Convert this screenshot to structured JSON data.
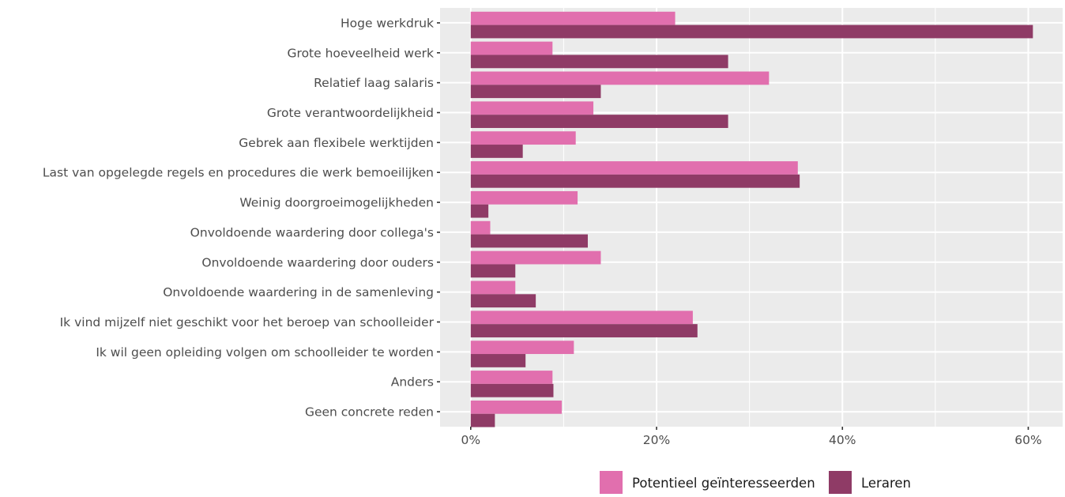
{
  "chart_data": {
    "type": "bar",
    "orientation": "horizontal",
    "categories": [
      "Hoge werkdruk",
      "Grote hoeveelheid werk",
      "Relatief laag salaris",
      "Grote verantwoordelijkheid",
      "Gebrek aan flexibele werktijden",
      "Last van opgelegde regels en procedures die werk bemoeilijken",
      "Weinig doorgroeimogelijkheden",
      "Onvoldoende waardering door collega's",
      "Onvoldoende waardering door ouders",
      "Onvoldoende waardering in de samenleving",
      "Ik vind mijzelf niet geschikt voor het beroep van schoolleider",
      "Ik wil geen opleiding volgen om schoolleider te worden",
      "Anders",
      "Geen concrete reden"
    ],
    "series": [
      {
        "name": "Potentieel geïnteresseerden",
        "color": "#e16fae",
        "values": [
          22.0,
          8.8,
          32.1,
          13.2,
          11.3,
          35.2,
          11.5,
          2.1,
          14.0,
          4.8,
          23.9,
          11.1,
          8.8,
          9.8
        ]
      },
      {
        "name": "Leraren",
        "color": "#8f3b66",
        "values": [
          60.5,
          27.7,
          14.0,
          27.7,
          5.6,
          35.4,
          1.9,
          12.6,
          4.8,
          7.0,
          24.4,
          5.9,
          8.9,
          2.6
        ]
      }
    ],
    "x_ticks": [
      "0%",
      "20%",
      "40%",
      "60%"
    ],
    "xlim": [
      -3.3,
      63.7
    ],
    "xlabel": "",
    "ylabel": "",
    "grid": true,
    "legend_position": "bottom",
    "panel_background": "#ebebeb",
    "grid_color": "#ffffff"
  }
}
